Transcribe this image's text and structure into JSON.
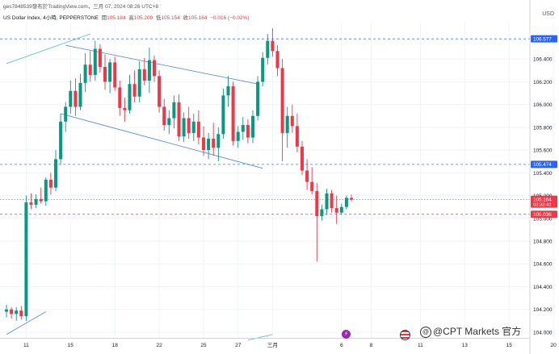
{
  "header": {
    "author": "ges7848539發布於TradingView.com，三月 07, 2024 08:26 UTC+8",
    "symbol": "US Dollar Index, 4小時, PEPPERSTONE",
    "open_label": "開",
    "open": "105.184",
    "high_label": "高",
    "high": "105.209",
    "low_label": "低",
    "low": "105.154",
    "close_label": "收",
    "close": "105.164",
    "change": "−0.016 (−0.02%)",
    "currency": "USD"
  },
  "watermark": {
    "text": "@CPT Markets 官方"
  },
  "event_icons": [
    "lightning-icon",
    "us-flag-icon"
  ],
  "colors": {
    "up": "#089981",
    "down": "#f23645",
    "channel": "#5b8def",
    "hline_blue": "#2962ff",
    "hline_red": "#f23645",
    "trend_teal": "#5ec5b8"
  },
  "chart_data": {
    "type": "candlestick",
    "ylim": [
      103.95,
      106.72
    ],
    "y_ticks": [
      "106.400",
      "106.200",
      "106.000",
      "105.800",
      "105.600",
      "105.400",
      "105.200",
      "105.000",
      "104.800",
      "104.600",
      "104.400",
      "104.200",
      "104.000"
    ],
    "x_ticks": [
      {
        "label": "11",
        "index": 4
      },
      {
        "label": "15",
        "index": 13
      },
      {
        "label": "18",
        "index": 22
      },
      {
        "label": "22",
        "index": 31
      },
      {
        "label": "25",
        "index": 40
      },
      {
        "label": "27",
        "index": 47
      },
      {
        "label": "三月",
        "index": 54
      },
      {
        "label": "6",
        "index": 68
      },
      {
        "label": "8",
        "index": 74
      },
      {
        "label": "11",
        "index": 84
      },
      {
        "label": "13",
        "index": 93
      },
      {
        "label": "15",
        "index": 102
      },
      {
        "label": "20",
        "index": 111
      }
    ],
    "price_labels": [
      {
        "value": 106.577,
        "text": "106.577",
        "kind": "level-blue"
      },
      {
        "value": 105.474,
        "text": "105.474",
        "kind": "level-blue"
      },
      {
        "value": 105.164,
        "text": "105.164",
        "sub": "03:33:41",
        "kind": "current"
      },
      {
        "value": 105.036,
        "text": "105.036",
        "kind": "level-red"
      }
    ],
    "candles": [
      [
        104.18,
        104.24,
        104.13,
        104.2
      ],
      [
        104.2,
        104.22,
        104.12,
        104.16
      ],
      [
        104.16,
        104.22,
        104.1,
        104.19
      ],
      [
        104.19,
        104.23,
        104.11,
        104.14
      ],
      [
        104.14,
        105.2,
        104.1,
        105.14
      ],
      [
        105.14,
        105.22,
        105.08,
        105.12
      ],
      [
        105.12,
        105.21,
        105.09,
        105.17
      ],
      [
        105.17,
        105.27,
        105.13,
        105.15
      ],
      [
        105.15,
        105.36,
        105.11,
        105.34
      ],
      [
        105.34,
        105.4,
        105.21,
        105.27
      ],
      [
        105.27,
        105.6,
        105.24,
        105.52
      ],
      [
        105.52,
        105.92,
        105.47,
        105.85
      ],
      [
        105.85,
        106.02,
        105.76,
        105.98
      ],
      [
        105.98,
        106.21,
        105.92,
        106.12
      ],
      [
        106.12,
        106.23,
        105.9,
        105.98
      ],
      [
        105.98,
        106.27,
        105.95,
        106.19
      ],
      [
        106.19,
        106.45,
        106.11,
        106.35
      ],
      [
        106.35,
        106.47,
        106.2,
        106.26
      ],
      [
        106.26,
        106.56,
        106.21,
        106.49
      ],
      [
        106.49,
        106.53,
        106.28,
        106.33
      ],
      [
        106.33,
        106.44,
        106.13,
        106.2
      ],
      [
        106.2,
        106.4,
        106.1,
        106.37
      ],
      [
        106.37,
        106.42,
        106.12,
        106.15
      ],
      [
        106.15,
        106.21,
        105.9,
        105.97
      ],
      [
        105.97,
        106.06,
        105.85,
        105.95
      ],
      [
        105.95,
        106.26,
        105.92,
        106.18
      ],
      [
        106.18,
        106.3,
        106.02,
        106.07
      ],
      [
        106.07,
        106.38,
        106.02,
        106.31
      ],
      [
        106.31,
        106.41,
        106.17,
        106.21
      ],
      [
        106.21,
        106.5,
        106.1,
        106.39
      ],
      [
        106.39,
        106.43,
        106.2,
        106.25
      ],
      [
        106.25,
        106.3,
        105.93,
        105.98
      ],
      [
        105.98,
        106.05,
        105.77,
        105.82
      ],
      [
        105.82,
        105.95,
        105.74,
        105.88
      ],
      [
        105.88,
        106.08,
        105.79,
        106.02
      ],
      [
        106.02,
        106.09,
        105.68,
        105.72
      ],
      [
        105.72,
        105.93,
        105.67,
        105.88
      ],
      [
        105.88,
        105.98,
        105.7,
        105.75
      ],
      [
        105.75,
        105.92,
        105.68,
        105.85
      ],
      [
        105.85,
        105.95,
        105.65,
        105.71
      ],
      [
        105.71,
        105.81,
        105.55,
        105.6
      ],
      [
        105.6,
        105.75,
        105.52,
        105.7
      ],
      [
        105.7,
        105.84,
        105.55,
        105.62
      ],
      [
        105.62,
        105.8,
        105.5,
        105.74
      ],
      [
        105.74,
        106.14,
        105.7,
        106.08
      ],
      [
        106.08,
        106.25,
        105.98,
        106.16
      ],
      [
        106.16,
        106.2,
        105.64,
        105.68
      ],
      [
        105.68,
        105.81,
        105.62,
        105.76
      ],
      [
        105.76,
        105.89,
        105.69,
        105.82
      ],
      [
        105.82,
        105.87,
        105.66,
        105.71
      ],
      [
        105.71,
        105.95,
        105.66,
        105.9
      ],
      [
        105.9,
        106.25,
        105.86,
        106.2
      ],
      [
        106.2,
        106.46,
        106.16,
        106.41
      ],
      [
        106.41,
        106.62,
        106.35,
        106.56
      ],
      [
        106.56,
        106.67,
        106.42,
        106.47
      ],
      [
        106.47,
        106.52,
        106.25,
        106.32
      ],
      [
        106.32,
        106.4,
        105.5,
        105.75
      ],
      [
        105.75,
        105.98,
        105.62,
        105.9
      ],
      [
        105.9,
        106.0,
        105.75,
        105.81
      ],
      [
        105.81,
        105.92,
        105.58,
        105.63
      ],
      [
        105.63,
        105.68,
        105.38,
        105.42
      ],
      [
        105.42,
        105.52,
        105.25,
        105.32
      ],
      [
        105.32,
        105.45,
        105.21,
        105.24
      ],
      [
        105.24,
        105.31,
        104.62,
        105.02
      ],
      [
        105.02,
        105.12,
        104.98,
        105.08
      ],
      [
        105.08,
        105.26,
        105.03,
        105.22
      ],
      [
        105.22,
        105.25,
        105.05,
        105.09
      ],
      [
        105.09,
        105.2,
        104.95,
        105.05
      ],
      [
        105.05,
        105.13,
        105.03,
        105.1
      ],
      [
        105.1,
        105.2,
        105.08,
        105.18
      ],
      [
        105.18,
        105.21,
        105.15,
        105.164
      ]
    ],
    "channel_upper": {
      "from": [
        12,
        106.52
      ],
      "to": [
        51,
        106.18
      ]
    },
    "channel_lower": {
      "from": [
        11,
        105.92
      ],
      "to": [
        52,
        105.44
      ]
    },
    "trendline_top": {
      "from": [
        0,
        106.36
      ],
      "to": [
        17,
        106.62
      ]
    },
    "trendline_bottom": {
      "from": [
        0,
        103.98
      ],
      "to": [
        8,
        104.18
      ]
    },
    "trendline_bottom2": {
      "from": [
        49,
        103.93
      ],
      "to": [
        54,
        103.98
      ]
    }
  }
}
